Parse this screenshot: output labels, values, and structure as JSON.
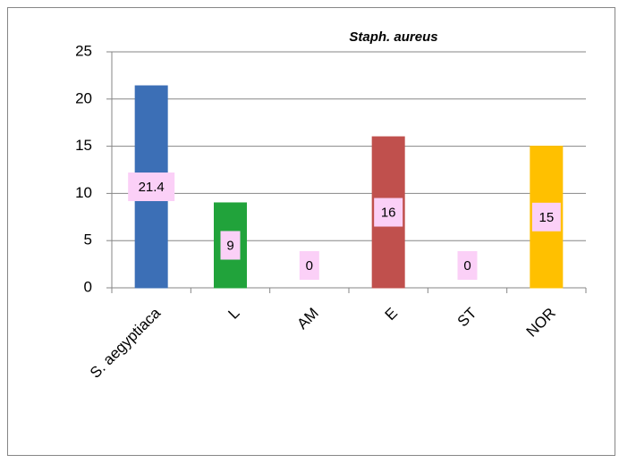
{
  "chart_data": {
    "type": "bar",
    "title": "Staph. aureus",
    "categories": [
      "S. aegyptiaca",
      "L",
      "AM",
      "E",
      "ST",
      "NOR"
    ],
    "values": [
      21.4,
      9,
      0,
      16,
      0,
      15
    ],
    "colors": [
      "#3c6fb6",
      "#21a33b",
      "#7f7f7f",
      "#c0504d",
      "#7f7f7f",
      "#ffc000"
    ],
    "ylim": [
      0,
      25
    ],
    "yticks": [
      0,
      5,
      10,
      15,
      20,
      25
    ],
    "grid": true
  }
}
